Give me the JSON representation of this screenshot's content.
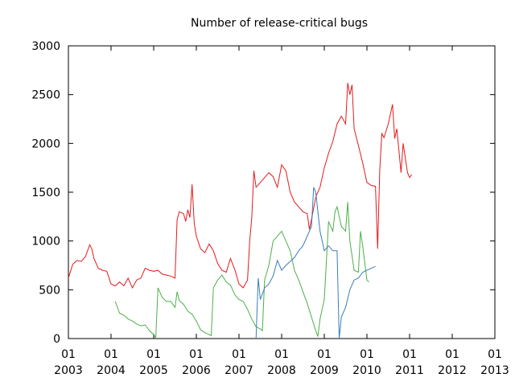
{
  "chart_data": {
    "type": "line",
    "title": "Number of release-critical bugs",
    "xlabel": "",
    "ylabel": "",
    "xlim": [
      2003.0,
      2013.0
    ],
    "ylim": [
      0,
      3000
    ],
    "y_ticks": [
      0,
      500,
      1000,
      1500,
      2000,
      2500,
      3000
    ],
    "x_ticks": [
      {
        "month": "01",
        "year": "2003",
        "x": 2003
      },
      {
        "month": "01",
        "year": "2004",
        "x": 2004
      },
      {
        "month": "01",
        "year": "2005",
        "x": 2005
      },
      {
        "month": "01",
        "year": "2006",
        "x": 2006
      },
      {
        "month": "01",
        "year": "2007",
        "x": 2007
      },
      {
        "month": "01",
        "year": "2008",
        "x": 2008
      },
      {
        "month": "01",
        "year": "2009",
        "x": 2009
      },
      {
        "month": "01",
        "year": "2010",
        "x": 2010
      },
      {
        "month": "01",
        "year": "2011",
        "x": 2011
      },
      {
        "month": "01",
        "year": "2012",
        "x": 2012
      },
      {
        "month": "01",
        "year": "2013",
        "x": 2013
      }
    ],
    "grid": false,
    "legend": "none",
    "series": [
      {
        "color": "#e41a1c",
        "points": [
          [
            2003.0,
            620
          ],
          [
            2003.1,
            760
          ],
          [
            2003.2,
            800
          ],
          [
            2003.3,
            790
          ],
          [
            2003.4,
            840
          ],
          [
            2003.5,
            960
          ],
          [
            2003.55,
            920
          ],
          [
            2003.6,
            820
          ],
          [
            2003.7,
            720
          ],
          [
            2003.8,
            700
          ],
          [
            2003.9,
            690
          ],
          [
            2004.0,
            560
          ],
          [
            2004.1,
            540
          ],
          [
            2004.2,
            580
          ],
          [
            2004.3,
            540
          ],
          [
            2004.4,
            620
          ],
          [
            2004.5,
            520
          ],
          [
            2004.6,
            600
          ],
          [
            2004.7,
            620
          ],
          [
            2004.8,
            720
          ],
          [
            2004.9,
            700
          ],
          [
            2005.0,
            690
          ],
          [
            2005.1,
            700
          ],
          [
            2005.2,
            660
          ],
          [
            2005.3,
            650
          ],
          [
            2005.4,
            640
          ],
          [
            2005.5,
            620
          ],
          [
            2005.55,
            1220
          ],
          [
            2005.6,
            1300
          ],
          [
            2005.7,
            1280
          ],
          [
            2005.75,
            1200
          ],
          [
            2005.8,
            1320
          ],
          [
            2005.85,
            1240
          ],
          [
            2005.9,
            1580
          ],
          [
            2005.95,
            1180
          ],
          [
            2006.0,
            1050
          ],
          [
            2006.1,
            920
          ],
          [
            2006.2,
            880
          ],
          [
            2006.3,
            970
          ],
          [
            2006.4,
            900
          ],
          [
            2006.5,
            770
          ],
          [
            2006.6,
            700
          ],
          [
            2006.7,
            680
          ],
          [
            2006.8,
            820
          ],
          [
            2006.9,
            710
          ],
          [
            2007.0,
            560
          ],
          [
            2007.1,
            520
          ],
          [
            2007.2,
            600
          ],
          [
            2007.25,
            1000
          ],
          [
            2007.3,
            1240
          ],
          [
            2007.35,
            1720
          ],
          [
            2007.4,
            1550
          ],
          [
            2007.5,
            1600
          ],
          [
            2007.6,
            1650
          ],
          [
            2007.7,
            1700
          ],
          [
            2007.8,
            1660
          ],
          [
            2007.9,
            1550
          ],
          [
            2008.0,
            1780
          ],
          [
            2008.1,
            1720
          ],
          [
            2008.2,
            1500
          ],
          [
            2008.3,
            1400
          ],
          [
            2008.4,
            1350
          ],
          [
            2008.5,
            1300
          ],
          [
            2008.6,
            1280
          ],
          [
            2008.65,
            1120
          ],
          [
            2008.7,
            1220
          ],
          [
            2008.8,
            1450
          ],
          [
            2008.9,
            1550
          ],
          [
            2009.0,
            1750
          ],
          [
            2009.1,
            1900
          ],
          [
            2009.2,
            2020
          ],
          [
            2009.3,
            2200
          ],
          [
            2009.4,
            2280
          ],
          [
            2009.5,
            2200
          ],
          [
            2009.55,
            2620
          ],
          [
            2009.6,
            2500
          ],
          [
            2009.65,
            2600
          ],
          [
            2009.7,
            2150
          ],
          [
            2009.8,
            1980
          ],
          [
            2009.9,
            1800
          ],
          [
            2010.0,
            1600
          ],
          [
            2010.1,
            1570
          ],
          [
            2010.2,
            1560
          ],
          [
            2010.25,
            920
          ],
          [
            2010.3,
            1720
          ],
          [
            2010.35,
            2100
          ],
          [
            2010.4,
            2060
          ],
          [
            2010.5,
            2200
          ],
          [
            2010.6,
            2400
          ],
          [
            2010.65,
            2050
          ],
          [
            2010.7,
            2150
          ],
          [
            2010.8,
            1700
          ],
          [
            2010.85,
            2000
          ],
          [
            2010.9,
            1850
          ],
          [
            2010.95,
            1700
          ],
          [
            2011.0,
            1650
          ],
          [
            2011.05,
            1680
          ]
        ]
      },
      {
        "color": "#4daf4a",
        "points": [
          [
            2004.1,
            380
          ],
          [
            2004.2,
            260
          ],
          [
            2004.3,
            240
          ],
          [
            2004.4,
            200
          ],
          [
            2004.5,
            180
          ],
          [
            2004.6,
            150
          ],
          [
            2004.7,
            130
          ],
          [
            2004.8,
            140
          ],
          [
            2004.9,
            80
          ],
          [
            2005.0,
            40
          ],
          [
            2005.05,
            10
          ],
          [
            2005.1,
            520
          ],
          [
            2005.2,
            420
          ],
          [
            2005.3,
            380
          ],
          [
            2005.4,
            380
          ],
          [
            2005.5,
            320
          ],
          [
            2005.55,
            480
          ],
          [
            2005.6,
            390
          ],
          [
            2005.7,
            350
          ],
          [
            2005.8,
            280
          ],
          [
            2005.9,
            250
          ],
          [
            2006.0,
            180
          ],
          [
            2006.1,
            90
          ],
          [
            2006.2,
            60
          ],
          [
            2006.3,
            40
          ],
          [
            2006.35,
            30
          ],
          [
            2006.4,
            520
          ],
          [
            2006.5,
            600
          ],
          [
            2006.6,
            650
          ],
          [
            2006.7,
            580
          ],
          [
            2006.8,
            550
          ],
          [
            2006.9,
            450
          ],
          [
            2007.0,
            400
          ],
          [
            2007.1,
            380
          ],
          [
            2007.2,
            300
          ],
          [
            2007.3,
            200
          ],
          [
            2007.4,
            120
          ],
          [
            2007.5,
            100
          ],
          [
            2007.55,
            80
          ],
          [
            2007.6,
            600
          ],
          [
            2007.7,
            750
          ],
          [
            2007.8,
            1000
          ],
          [
            2007.9,
            1050
          ],
          [
            2008.0,
            1100
          ],
          [
            2008.1,
            1000
          ],
          [
            2008.2,
            900
          ],
          [
            2008.3,
            700
          ],
          [
            2008.4,
            600
          ],
          [
            2008.5,
            480
          ],
          [
            2008.6,
            360
          ],
          [
            2008.7,
            220
          ],
          [
            2008.8,
            80
          ],
          [
            2008.85,
            20
          ],
          [
            2008.9,
            200
          ],
          [
            2009.0,
            400
          ],
          [
            2009.1,
            1200
          ],
          [
            2009.2,
            1100
          ],
          [
            2009.25,
            1300
          ],
          [
            2009.3,
            1350
          ],
          [
            2009.4,
            1150
          ],
          [
            2009.5,
            1100
          ],
          [
            2009.55,
            1400
          ],
          [
            2009.6,
            1000
          ],
          [
            2009.7,
            700
          ],
          [
            2009.8,
            680
          ],
          [
            2009.85,
            1100
          ],
          [
            2009.9,
            950
          ],
          [
            2010.0,
            600
          ],
          [
            2010.05,
            580
          ]
        ]
      },
      {
        "color": "#377eb8",
        "points": [
          [
            2007.4,
            0
          ],
          [
            2007.45,
            620
          ],
          [
            2007.5,
            400
          ],
          [
            2007.6,
            520
          ],
          [
            2007.7,
            560
          ],
          [
            2007.8,
            640
          ],
          [
            2007.9,
            800
          ],
          [
            2008.0,
            700
          ],
          [
            2008.1,
            750
          ],
          [
            2008.2,
            790
          ],
          [
            2008.3,
            830
          ],
          [
            2008.4,
            900
          ],
          [
            2008.5,
            950
          ],
          [
            2008.6,
            1050
          ],
          [
            2008.7,
            1150
          ],
          [
            2008.75,
            1550
          ],
          [
            2008.8,
            1500
          ],
          [
            2008.9,
            1100
          ],
          [
            2009.0,
            900
          ],
          [
            2009.1,
            950
          ],
          [
            2009.2,
            900
          ],
          [
            2009.3,
            900
          ],
          [
            2009.35,
            0
          ],
          [
            2009.4,
            220
          ],
          [
            2009.5,
            320
          ],
          [
            2009.6,
            500
          ],
          [
            2009.7,
            600
          ],
          [
            2009.8,
            620
          ],
          [
            2009.9,
            680
          ],
          [
            2010.0,
            700
          ],
          [
            2010.1,
            720
          ],
          [
            2010.2,
            740
          ]
        ]
      }
    ]
  }
}
